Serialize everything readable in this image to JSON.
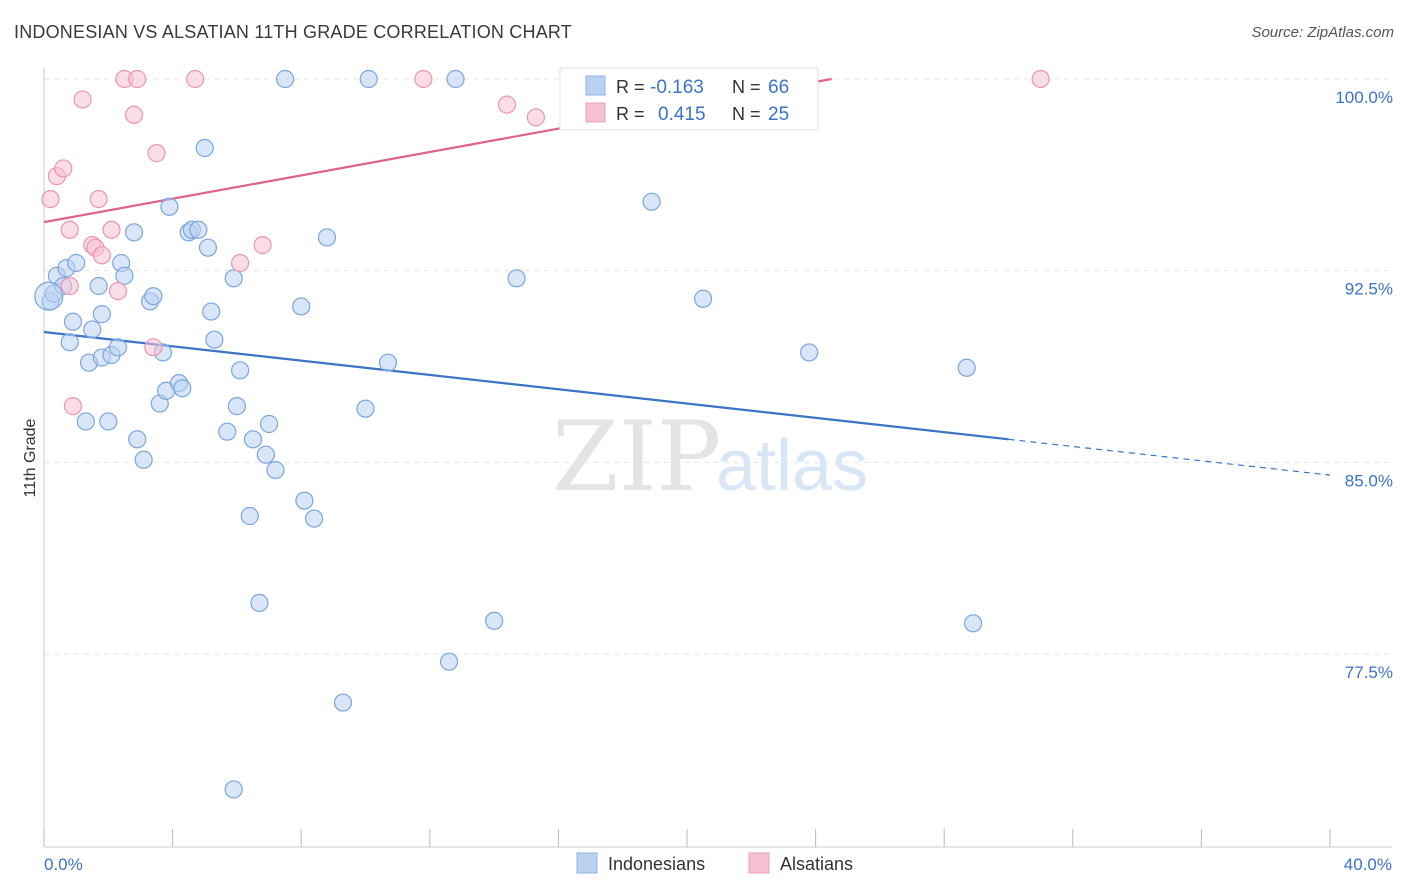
{
  "title": "INDONESIAN VS ALSATIAN 11TH GRADE CORRELATION CHART",
  "source": "Source: ZipAtlas.com",
  "watermark": {
    "zip": "ZIP",
    "atlas": "atlas"
  },
  "colors": {
    "blue": "#3b73c7",
    "blue_fill": "#b9d2f2",
    "pink": "#e0618b",
    "pink_fill": "#f6c1d2",
    "grid": "#e6e6e6"
  },
  "stats_legend": [
    {
      "r_label": "R =",
      "r_value": "-0.163",
      "n_label": "N =",
      "n_value": "66"
    },
    {
      "r_label": "R =",
      "r_value": "0.415",
      "n_label": "N =",
      "n_value": "25"
    }
  ],
  "chart_data": {
    "type": "scatter",
    "title": "INDONESIAN VS ALSATIAN 11TH GRADE CORRELATION CHART",
    "xlabel": "",
    "ylabel": "11th Grade",
    "xlim": [
      0,
      40
    ],
    "ylim": [
      70.5,
      101
    ],
    "x_tick_labels": [
      "0.0%",
      "40.0%"
    ],
    "y_ticks": [
      77.5,
      85.0,
      92.5,
      100.0
    ],
    "y_tick_labels": [
      "77.5%",
      "85.0%",
      "92.5%",
      "100.0%"
    ],
    "grid": true,
    "legend": "bottom-center",
    "series": [
      {
        "name": "Indonesians",
        "color": "#3b73c7",
        "trend": {
          "x": [
            0,
            30,
            40
          ],
          "y": [
            90.1,
            85.9,
            84.5
          ]
        },
        "points": [
          [
            0.2,
            91.3
          ],
          [
            0.3,
            91.6
          ],
          [
            0.4,
            92.3
          ],
          [
            0.6,
            91.9
          ],
          [
            0.7,
            92.6
          ],
          [
            0.8,
            89.7
          ],
          [
            0.9,
            90.5
          ],
          [
            1.0,
            92.8
          ],
          [
            1.3,
            86.6
          ],
          [
            1.4,
            88.9
          ],
          [
            1.5,
            90.2
          ],
          [
            1.7,
            91.9
          ],
          [
            1.8,
            89.1
          ],
          [
            1.8,
            90.8
          ],
          [
            2.0,
            86.6
          ],
          [
            2.1,
            89.2
          ],
          [
            2.3,
            89.5
          ],
          [
            2.4,
            92.8
          ],
          [
            2.5,
            92.3
          ],
          [
            2.8,
            94.0
          ],
          [
            2.9,
            85.9
          ],
          [
            3.1,
            85.1
          ],
          [
            3.3,
            91.3
          ],
          [
            3.4,
            91.5
          ],
          [
            3.6,
            87.3
          ],
          [
            3.7,
            89.3
          ],
          [
            3.8,
            87.8
          ],
          [
            3.9,
            95.0
          ],
          [
            4.2,
            88.1
          ],
          [
            4.3,
            87.9
          ],
          [
            4.5,
            94.0
          ],
          [
            4.6,
            94.1
          ],
          [
            4.8,
            94.1
          ],
          [
            5.0,
            97.3
          ],
          [
            5.1,
            93.4
          ],
          [
            5.2,
            90.9
          ],
          [
            5.3,
            89.8
          ],
          [
            5.7,
            86.2
          ],
          [
            5.9,
            92.2
          ],
          [
            6.0,
            87.2
          ],
          [
            6.1,
            88.6
          ],
          [
            6.4,
            82.9
          ],
          [
            6.5,
            85.9
          ],
          [
            6.7,
            79.5
          ],
          [
            6.9,
            85.3
          ],
          [
            7.0,
            86.5
          ],
          [
            7.2,
            84.7
          ],
          [
            7.5,
            100.0
          ],
          [
            8.0,
            91.1
          ],
          [
            8.1,
            83.5
          ],
          [
            8.4,
            82.8
          ],
          [
            8.8,
            93.8
          ],
          [
            9.3,
            75.6
          ],
          [
            10.0,
            87.1
          ],
          [
            10.1,
            100.0
          ],
          [
            10.7,
            88.9
          ],
          [
            12.6,
            77.2
          ],
          [
            12.8,
            100.0
          ],
          [
            14.0,
            78.8
          ],
          [
            14.7,
            92.2
          ],
          [
            18.9,
            95.2
          ],
          [
            20.5,
            91.4
          ],
          [
            23.8,
            89.3
          ],
          [
            28.7,
            88.7
          ],
          [
            28.9,
            78.7
          ],
          [
            5.9,
            72.2
          ]
        ]
      },
      {
        "name": "Alsatians",
        "color": "#e0618b",
        "trend": {
          "x": [
            0,
            24.5
          ],
          "y": [
            94.4,
            100.0
          ]
        },
        "points": [
          [
            0.2,
            95.3
          ],
          [
            0.4,
            96.2
          ],
          [
            0.6,
            96.5
          ],
          [
            0.8,
            94.1
          ],
          [
            0.8,
            91.9
          ],
          [
            0.9,
            87.2
          ],
          [
            1.2,
            99.2
          ],
          [
            1.5,
            93.5
          ],
          [
            1.6,
            93.4
          ],
          [
            1.7,
            95.3
          ],
          [
            1.8,
            93.1
          ],
          [
            2.1,
            94.1
          ],
          [
            2.3,
            91.7
          ],
          [
            2.5,
            100.0
          ],
          [
            2.8,
            98.6
          ],
          [
            2.9,
            100.0
          ],
          [
            3.4,
            89.5
          ],
          [
            3.5,
            97.1
          ],
          [
            4.7,
            100.0
          ],
          [
            6.1,
            92.8
          ],
          [
            6.8,
            93.5
          ],
          [
            11.8,
            100.0
          ],
          [
            14.4,
            99.0
          ],
          [
            15.3,
            98.5
          ],
          [
            31.0,
            100.0
          ]
        ]
      }
    ]
  }
}
